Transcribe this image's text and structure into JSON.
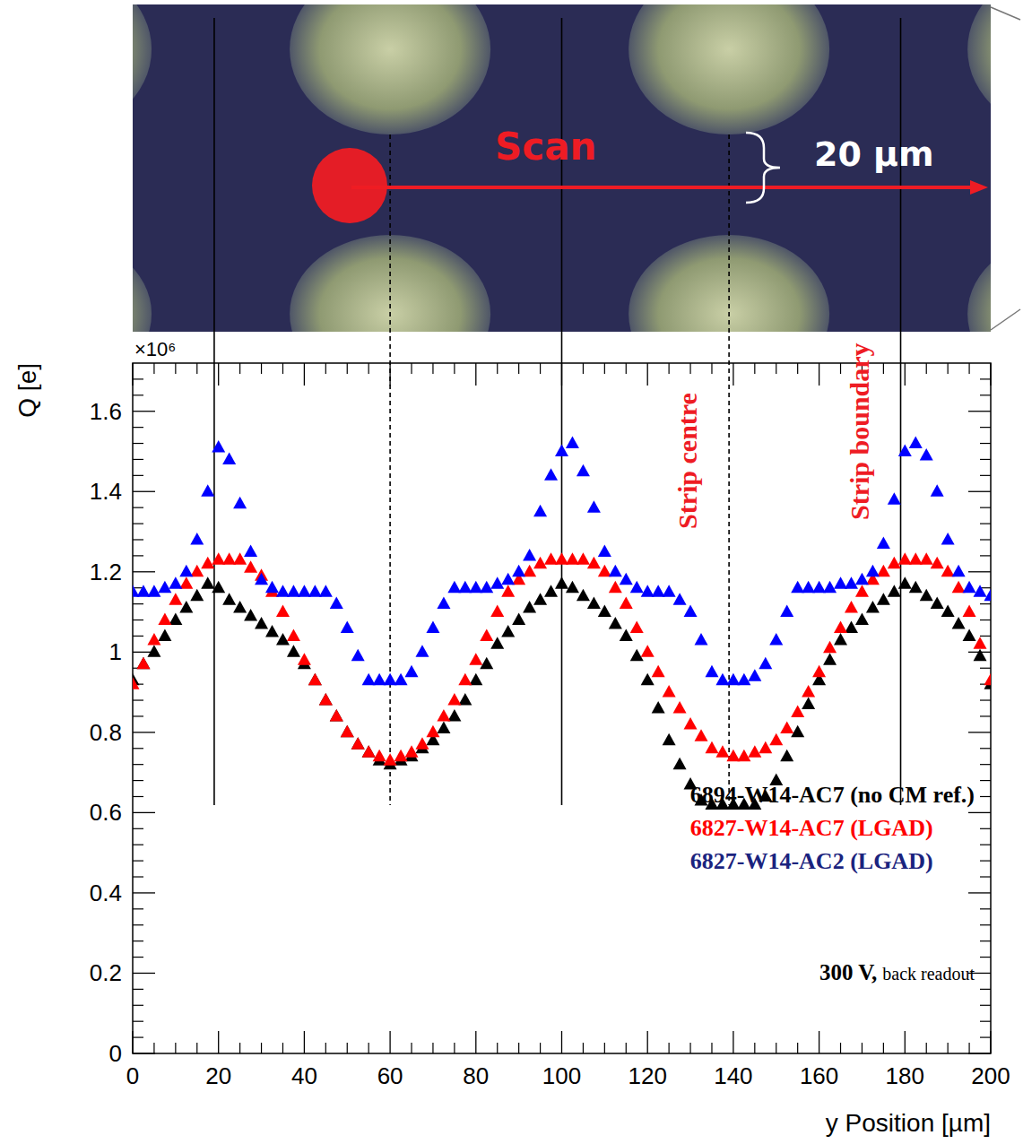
{
  "chart_data": {
    "type": "scatter",
    "x_label": "y Position [µm]",
    "y_label": "Q [e]",
    "annotations": {
      "multiplier": "×10⁶",
      "scan": "Scan",
      "scan_width": "20 µm",
      "voltage": "300 V,",
      "readout": "back readout"
    },
    "vlines": {
      "boundaries": {
        "label": "Strip boundary",
        "x": [
          19,
          100,
          179
        ],
        "line_style": "solid"
      },
      "centres": {
        "label": "Strip centre",
        "x": [
          60,
          139
        ],
        "line_style": "dashed"
      }
    },
    "xlim": [
      0,
      200
    ],
    "xticks": [
      0,
      20,
      40,
      60,
      80,
      100,
      120,
      140,
      160,
      180,
      200
    ],
    "ylim": [
      0,
      1.72
    ],
    "yticks": [
      0,
      0.2,
      0.4,
      0.6,
      0.8,
      1,
      1.2,
      1.4,
      1.6
    ],
    "legend": "bottom right",
    "x": [
      0,
      2.5,
      5,
      7.5,
      10,
      12.5,
      15,
      17.5,
      20,
      22.5,
      25,
      27.5,
      30,
      32.5,
      35,
      37.5,
      40,
      42.5,
      45,
      47.5,
      50,
      52.5,
      55,
      57.5,
      60,
      62.5,
      65,
      67.5,
      70,
      72.5,
      75,
      77.5,
      80,
      82.5,
      85,
      87.5,
      90,
      92.5,
      95,
      97.5,
      100,
      102.5,
      105,
      107.5,
      110,
      112.5,
      115,
      117.5,
      120,
      122.5,
      125,
      127.5,
      130,
      132.5,
      135,
      137.5,
      140,
      142.5,
      145,
      147.5,
      150,
      152.5,
      155,
      157.5,
      160,
      162.5,
      165,
      167.5,
      170,
      172.5,
      175,
      177.5,
      180,
      182.5,
      185,
      187.5,
      190,
      192.5,
      195,
      197.5,
      200
    ],
    "series": [
      {
        "name": "6894-W14-AC7 (no CM ref.)",
        "color": "#000000",
        "marker": "triangle",
        "values": [
          0.93,
          0.97,
          1.0,
          1.04,
          1.08,
          1.11,
          1.14,
          1.17,
          1.16,
          1.13,
          1.11,
          1.09,
          1.07,
          1.05,
          1.03,
          1.0,
          0.97,
          0.93,
          0.88,
          0.84,
          0.8,
          0.77,
          0.75,
          0.73,
          0.72,
          0.73,
          0.74,
          0.76,
          0.78,
          0.81,
          0.84,
          0.88,
          0.93,
          0.97,
          1.02,
          1.05,
          1.08,
          1.11,
          1.13,
          1.15,
          1.17,
          1.16,
          1.14,
          1.12,
          1.1,
          1.07,
          1.04,
          0.99,
          0.93,
          0.86,
          0.78,
          0.72,
          0.67,
          0.63,
          0.62,
          0.62,
          0.62,
          0.62,
          0.62,
          0.64,
          0.68,
          0.74,
          0.8,
          0.87,
          0.93,
          0.98,
          1.03,
          1.06,
          1.08,
          1.11,
          1.13,
          1.15,
          1.17,
          1.16,
          1.14,
          1.12,
          1.1,
          1.07,
          1.04,
          0.99,
          0.92
        ]
      },
      {
        "name": "6827-W14-AC7 (LGAD)",
        "color": "#ff0000",
        "marker": "triangle",
        "values": [
          0.92,
          0.97,
          1.03,
          1.08,
          1.13,
          1.17,
          1.2,
          1.22,
          1.23,
          1.23,
          1.23,
          1.21,
          1.19,
          1.15,
          1.1,
          1.04,
          0.98,
          0.93,
          0.88,
          0.84,
          0.8,
          0.77,
          0.75,
          0.74,
          0.73,
          0.74,
          0.75,
          0.77,
          0.8,
          0.84,
          0.88,
          0.93,
          0.98,
          1.04,
          1.1,
          1.15,
          1.18,
          1.2,
          1.22,
          1.23,
          1.23,
          1.23,
          1.23,
          1.22,
          1.2,
          1.16,
          1.12,
          1.06,
          1.0,
          0.95,
          0.9,
          0.86,
          0.82,
          0.79,
          0.76,
          0.75,
          0.74,
          0.74,
          0.75,
          0.76,
          0.78,
          0.81,
          0.85,
          0.9,
          0.95,
          1.01,
          1.06,
          1.11,
          1.15,
          1.18,
          1.2,
          1.22,
          1.23,
          1.23,
          1.23,
          1.22,
          1.2,
          1.16,
          1.1,
          1.02,
          0.93
        ]
      },
      {
        "name": "6827-W14-AC2 (LGAD)",
        "color": "#0000ff",
        "marker": "triangle",
        "values": [
          1.15,
          1.15,
          1.15,
          1.16,
          1.17,
          1.2,
          1.28,
          1.4,
          1.51,
          1.48,
          1.37,
          1.25,
          1.18,
          1.16,
          1.15,
          1.15,
          1.15,
          1.15,
          1.15,
          1.12,
          1.06,
          0.99,
          0.93,
          0.93,
          0.93,
          0.93,
          0.95,
          1.0,
          1.06,
          1.12,
          1.16,
          1.16,
          1.16,
          1.16,
          1.17,
          1.18,
          1.2,
          1.24,
          1.35,
          1.44,
          1.5,
          1.52,
          1.45,
          1.36,
          1.25,
          1.2,
          1.18,
          1.16,
          1.15,
          1.15,
          1.15,
          1.13,
          1.1,
          1.03,
          0.95,
          0.93,
          0.93,
          0.93,
          0.94,
          0.97,
          1.03,
          1.1,
          1.16,
          1.16,
          1.16,
          1.16,
          1.17,
          1.17,
          1.18,
          1.2,
          1.27,
          1.38,
          1.5,
          1.52,
          1.49,
          1.4,
          1.28,
          1.2,
          1.16,
          1.15,
          1.14
        ]
      }
    ]
  }
}
